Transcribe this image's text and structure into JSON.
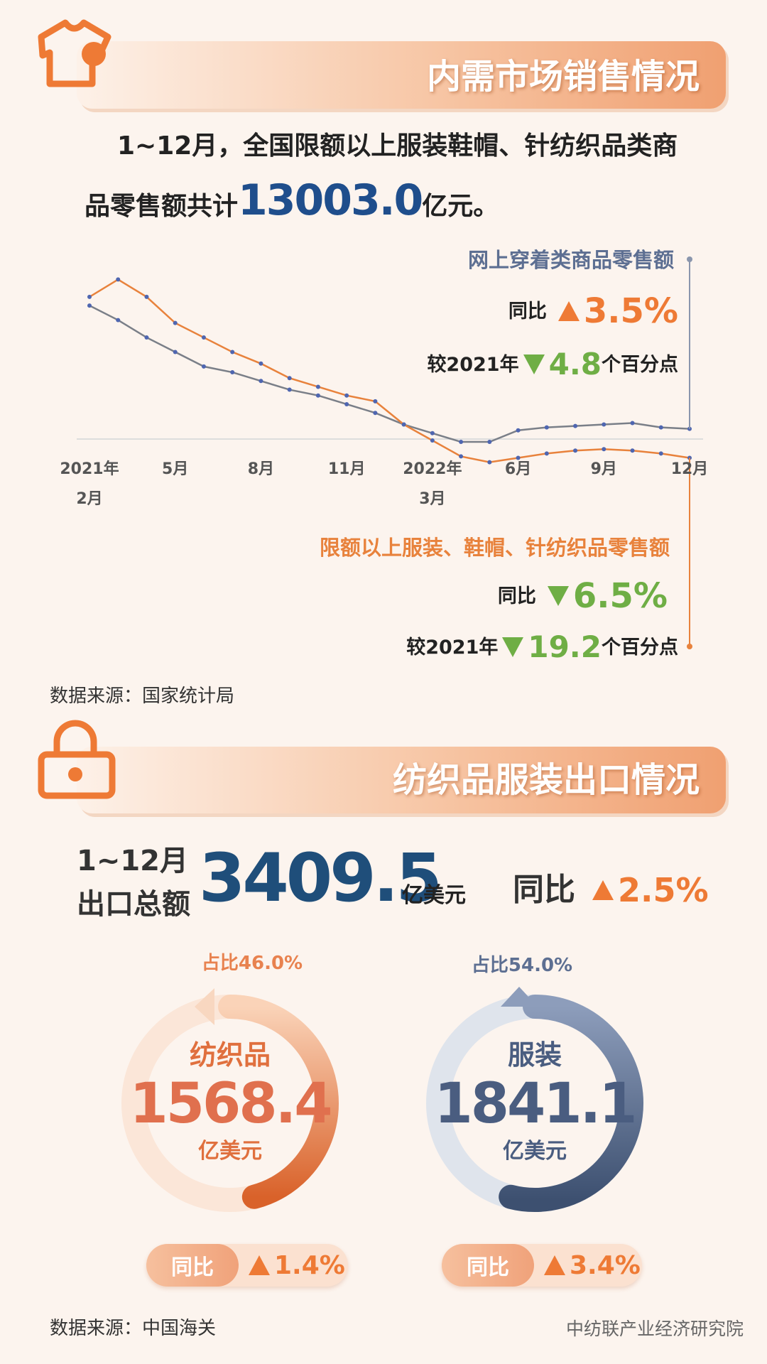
{
  "header1": {
    "title": "内需市场销售情况"
  },
  "intro": {
    "line1": "1~12月，全国限额以上服装鞋帽、针纺织品类商",
    "line2": "品零售额共计",
    "total": "13003.0",
    "unit": "亿元。"
  },
  "chart_data": {
    "type": "line",
    "categories": [
      "2021年\n2月",
      null,
      null,
      "5月",
      null,
      null,
      "8月",
      null,
      null,
      "11月",
      null,
      null,
      "2022年\n3月",
      null,
      null,
      "6月",
      null,
      null,
      "9月",
      null,
      null,
      "12月"
    ],
    "series": [
      {
        "name": "网上穿着类商品零售额",
        "color": "#7a7f88",
        "values": [
          46,
          41,
          35,
          30,
          25,
          23,
          20,
          17,
          15,
          12,
          9,
          5,
          2,
          -1,
          -1,
          3,
          4,
          4.5,
          5,
          5.5,
          4,
          3.5
        ]
      },
      {
        "name": "限额以上服装、鞋帽、针纺织品零售额",
        "color": "#e8823c",
        "values": [
          49,
          55,
          49,
          40,
          35,
          30,
          26,
          21,
          18,
          15,
          13,
          5,
          -0.5,
          -6,
          -8,
          -6.5,
          -5,
          -4,
          -3.5,
          -4,
          -5,
          -6.5
        ]
      }
    ],
    "ylim": [
      -25,
      60
    ],
    "grid": false
  },
  "annotations": {
    "online": {
      "yoy_label": "同比",
      "yoy": "3.5%",
      "diff_label": "较2021年",
      "diff": "4.8",
      "diff_unit": "个百分点"
    },
    "retail": {
      "yoy_label": "同比",
      "yoy": "6.5%",
      "diff_label": "较2021年",
      "diff": "19.2",
      "diff_unit": "个百分点"
    }
  },
  "source1": "数据来源：国家统计局",
  "export": {
    "title": "纺织品服装出口情况",
    "period": "1~12月",
    "label": "出口总额",
    "total": "3409.5",
    "unit": "亿美元",
    "yoy_label": "同比",
    "yoy": "2.5%",
    "items": [
      {
        "name": "纺织品",
        "share": 46.0,
        "share_label": "占比46.0%",
        "amount": "1568.4",
        "unit": "亿美元",
        "yoy_label": "同比",
        "yoy": "1.4%",
        "color": "#d9622a"
      },
      {
        "name": "服装",
        "share": 54.0,
        "share_label": "占比54.0%",
        "amount": "1841.1",
        "unit": "亿美元",
        "yoy_label": "同比",
        "yoy": "3.4%",
        "color": "#3d5070"
      }
    ]
  },
  "source2": "数据来源：中国海关",
  "watermark": "中纺联产业经济研究院"
}
